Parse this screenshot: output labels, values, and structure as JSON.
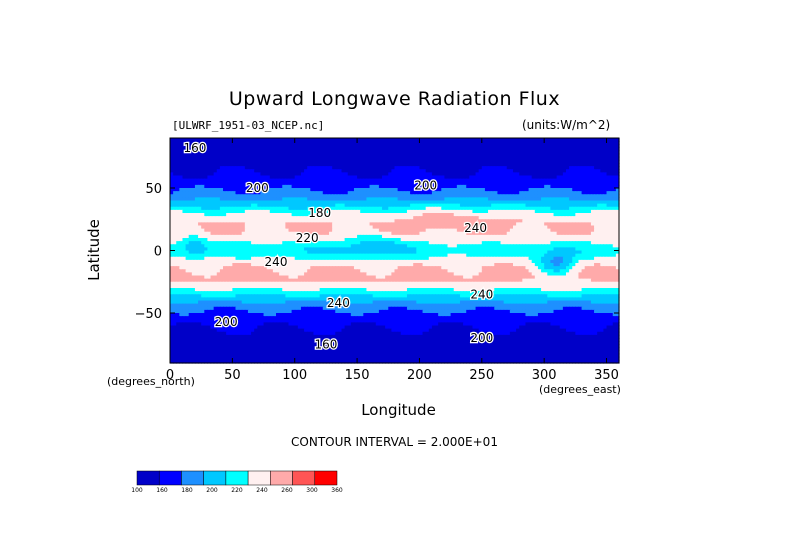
{
  "chart_data": {
    "type": "heatmap",
    "title": "Upward Longwave Radiation Flux",
    "file_label": "[ULWRF_1951-03_NCEP.nc]",
    "units_label": "(units:W/m^2)",
    "xlabel": "Longitude",
    "ylabel": "Latitude",
    "x_unit": "(degrees_east)",
    "y_unit": "(degrees_north)",
    "xlim": [
      0,
      360
    ],
    "ylim": [
      -90,
      90
    ],
    "x_ticks": [
      0,
      50,
      100,
      150,
      200,
      250,
      300,
      350
    ],
    "y_ticks": [
      50,
      0,
      -50
    ],
    "contour_interval": "CONTOUR INTERVAL = 2.000E+01",
    "contour_labels": [
      {
        "text": "160",
        "lon": 20,
        "lat": 82
      },
      {
        "text": "200",
        "lon": 70,
        "lat": 50
      },
      {
        "text": "200",
        "lon": 205,
        "lat": 52
      },
      {
        "text": "180",
        "lon": 120,
        "lat": 30
      },
      {
        "text": "240",
        "lon": 245,
        "lat": 18
      },
      {
        "text": "220",
        "lon": 110,
        "lat": 10
      },
      {
        "text": "240",
        "lon": 85,
        "lat": -9
      },
      {
        "text": "240",
        "lon": 135,
        "lat": -42
      },
      {
        "text": "240",
        "lon": 250,
        "lat": -35
      },
      {
        "text": "200",
        "lon": 45,
        "lat": -57
      },
      {
        "text": "200",
        "lon": 250,
        "lat": -70
      },
      {
        "text": "160",
        "lon": 125,
        "lat": -75
      }
    ],
    "colorbar": {
      "levels": [
        "100",
        "160",
        "180",
        "200",
        "220",
        "240",
        "260",
        "300",
        "360"
      ],
      "colors": [
        "#0000c8",
        "#0000ff",
        "#1e90ff",
        "#00c8ff",
        "#00ffff",
        "#fff0f0",
        "#ffaaaa",
        "#ff5555",
        "#ff0000"
      ]
    }
  }
}
